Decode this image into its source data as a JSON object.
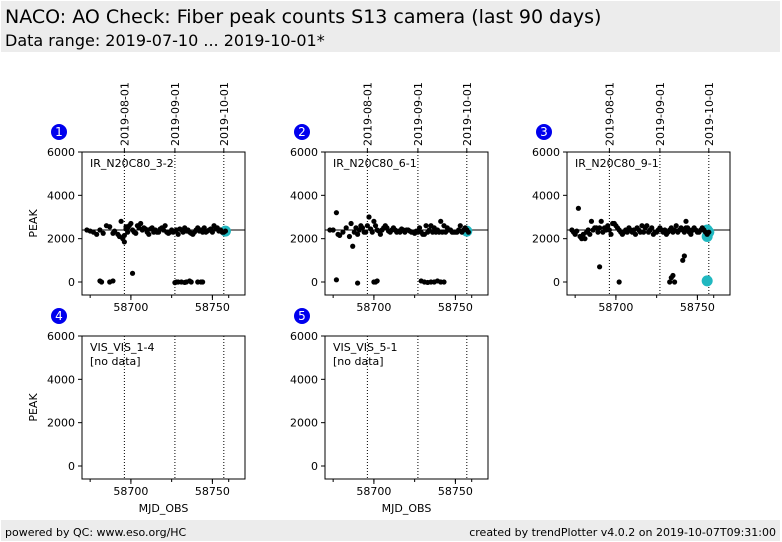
{
  "header": {
    "title": "NACO: AO Check: Fiber peak counts S13 camera (last 90 days)",
    "subtitle": "Data range: 2019-07-10 ... 2019-10-01*"
  },
  "footer": {
    "left": "powered by QC: www.eso.org/HC",
    "right": "created by trendPlotter v4.0.2 on 2019-10-07T09:31:00"
  },
  "colors": {
    "badge": "#0000ee",
    "highlight": "#20b8c0",
    "points": "#000000",
    "header_bg": "#ececec"
  },
  "chart_data": {
    "type": "scatter",
    "xlabel": "MJD_OBS",
    "ylabel": "PEAK",
    "xlim": [
      58670,
      58770
    ],
    "ylim": [
      -600,
      6000
    ],
    "yticks": [
      0,
      2000,
      4000,
      6000
    ],
    "xticks": [
      58700,
      58750
    ],
    "date_markers": [
      {
        "label": "2019-08-01",
        "mjd": 58696
      },
      {
        "label": "2019-09-01",
        "mjd": 58727
      },
      {
        "label": "2019-10-01",
        "mjd": 58757
      }
    ],
    "panels": [
      {
        "id": "1",
        "label": "IR_N20C80_3-2",
        "reference": 2400,
        "x": [
          58673,
          58675,
          58677,
          58679,
          58681,
          58683,
          58685,
          58687,
          58689,
          58690,
          58692,
          58693,
          58694,
          58695,
          58696,
          58696,
          58697,
          58697,
          58698,
          58698,
          58699,
          58700,
          58701,
          58702,
          58703,
          58704,
          58705,
          58706,
          58707,
          58708,
          58709,
          58710,
          58711,
          58712,
          58713,
          58714,
          58715,
          58716,
          58717,
          58718,
          58719,
          58720,
          58721,
          58722,
          58723,
          58724,
          58725,
          58726,
          58727,
          58728,
          58729,
          58730,
          58731,
          58732,
          58733,
          58734,
          58735,
          58736,
          58737,
          58738,
          58739,
          58740,
          58741,
          58742,
          58743,
          58744,
          58745,
          58746,
          58747,
          58748,
          58749,
          58750,
          58751,
          58752,
          58753,
          58754,
          58755,
          58756,
          58757,
          58758,
          58681,
          58682,
          58687,
          58689,
          58701,
          58727,
          58728,
          58729,
          58731,
          58733,
          58734,
          58736,
          58737,
          58741,
          58743,
          58744
        ],
        "y": [
          2400,
          2350,
          2300,
          2200,
          2400,
          2250,
          2600,
          2550,
          2250,
          2350,
          2200,
          2100,
          2800,
          2000,
          1850,
          2150,
          2450,
          2550,
          2500,
          2300,
          2600,
          2700,
          2400,
          2300,
          2250,
          2600,
          2500,
          2700,
          2400,
          2500,
          2450,
          2300,
          2200,
          2450,
          2500,
          2300,
          2400,
          2300,
          2300,
          2450,
          2500,
          2400,
          2600,
          2300,
          2250,
          2300,
          2400,
          2300,
          2350,
          2400,
          2200,
          2450,
          2400,
          2300,
          2500,
          2350,
          2400,
          2300,
          2250,
          2200,
          2300,
          2400,
          2500,
          2350,
          2400,
          2300,
          2500,
          2300,
          2350,
          2400,
          2450,
          2300,
          2600,
          2450,
          2500,
          2350,
          2400,
          2300,
          2300,
          2350,
          50,
          0,
          0,
          50,
          400,
          -30,
          0,
          0,
          0,
          -20,
          0,
          50,
          0,
          0,
          0,
          0
        ],
        "hx": [
          58758
        ],
        "hy": [
          2350
        ]
      },
      {
        "id": "2",
        "label": "IR_N20C80_6-1",
        "reference": 2400,
        "x": [
          58673,
          58675,
          58677,
          58678,
          58679,
          58681,
          58683,
          58685,
          58686,
          58687,
          58688,
          58689,
          58690,
          58691,
          58692,
          58693,
          58694,
          58695,
          58696,
          58697,
          58698,
          58699,
          58700,
          58701,
          58702,
          58703,
          58704,
          58705,
          58706,
          58707,
          58708,
          58709,
          58710,
          58711,
          58712,
          58713,
          58714,
          58715,
          58716,
          58717,
          58718,
          58719,
          58720,
          58721,
          58722,
          58723,
          58724,
          58725,
          58726,
          58727,
          58728,
          58729,
          58730,
          58731,
          58732,
          58733,
          58734,
          58735,
          58736,
          58737,
          58738,
          58739,
          58740,
          58741,
          58742,
          58743,
          58744,
          58745,
          58746,
          58747,
          58748,
          58749,
          58750,
          58751,
          58752,
          58753,
          58754,
          58755,
          58756,
          58757,
          58758,
          58677,
          58690,
          58700,
          58701,
          58702,
          58729,
          58731,
          58733,
          58735,
          58737,
          58739,
          58741,
          58743
        ],
        "y": [
          2400,
          2400,
          3200,
          2200,
          2150,
          2300,
          2500,
          2100,
          2700,
          1650,
          2300,
          2500,
          2200,
          2400,
          2600,
          2500,
          2300,
          2300,
          2600,
          3000,
          2450,
          2300,
          2800,
          2600,
          2400,
          2350,
          2200,
          2400,
          2500,
          2600,
          2500,
          2350,
          2300,
          2400,
          2500,
          2400,
          2300,
          2350,
          2300,
          2450,
          2400,
          2300,
          2400,
          2400,
          2350,
          2300,
          2300,
          2250,
          2350,
          2300,
          2500,
          2300,
          2200,
          2200,
          2600,
          2300,
          2400,
          2600,
          2300,
          2500,
          2300,
          2400,
          2300,
          2800,
          2300,
          2600,
          2300,
          2500,
          2400,
          2400,
          2300,
          2300,
          2300,
          2300,
          2400,
          2600,
          2300,
          2400,
          2500,
          2400,
          2300,
          100,
          -50,
          0,
          0,
          50,
          50,
          0,
          -20,
          0,
          0,
          50,
          0,
          0
        ],
        "hx": [
          58757
        ],
        "hy": [
          2350
        ]
      },
      {
        "id": "3",
        "label": "IR_N20C80_9-1",
        "reference": 2400,
        "x": [
          58673,
          58674,
          58675,
          58676,
          58677,
          58678,
          58679,
          58680,
          58681,
          58682,
          58683,
          58684,
          58685,
          58686,
          58687,
          58688,
          58689,
          58690,
          58691,
          58692,
          58693,
          58694,
          58695,
          58696,
          58697,
          58698,
          58699,
          58700,
          58701,
          58702,
          58703,
          58704,
          58705,
          58706,
          58707,
          58708,
          58709,
          58710,
          58711,
          58712,
          58713,
          58714,
          58715,
          58716,
          58717,
          58718,
          58719,
          58720,
          58721,
          58722,
          58723,
          58724,
          58725,
          58726,
          58727,
          58728,
          58729,
          58730,
          58731,
          58732,
          58733,
          58734,
          58735,
          58736,
          58737,
          58738,
          58739,
          58740,
          58741,
          58742,
          58743,
          58744,
          58745,
          58746,
          58747,
          58748,
          58749,
          58750,
          58751,
          58752,
          58753,
          58754,
          58755,
          58756,
          58757,
          58690,
          58702,
          58733,
          58734,
          58735,
          58736,
          58741,
          58742,
          58743,
          58744,
          58745,
          58746,
          58747
        ],
        "y": [
          2400,
          2300,
          2200,
          2350,
          3400,
          2100,
          2000,
          2200,
          2000,
          2300,
          2400,
          2200,
          2800,
          2400,
          2500,
          2500,
          2300,
          2500,
          2800,
          2300,
          2500,
          2400,
          2600,
          2400,
          2200,
          2700,
          2700,
          2600,
          2500,
          2400,
          2300,
          2200,
          2300,
          2400,
          2300,
          2500,
          2400,
          2300,
          2400,
          2200,
          2500,
          2400,
          2300,
          2600,
          2300,
          2500,
          2600,
          2300,
          2400,
          2500,
          2200,
          2300,
          2300,
          2400,
          2500,
          2400,
          2300,
          2400,
          2200,
          2300,
          2400,
          2500,
          2300,
          2400,
          2600,
          2300,
          2400,
          2500,
          2400,
          2300,
          2500,
          2400,
          2300,
          2200,
          2400,
          2500,
          2400,
          2300,
          2300,
          2400,
          2500,
          2400,
          2300,
          2200,
          2300,
          700,
          0,
          0,
          200,
          300,
          0,
          1000,
          1200,
          2800,
          2500,
          2400,
          2300,
          2400
        ],
        "hx": [
          58756,
          58756,
          58757,
          58756
        ],
        "hy": [
          2400,
          2100,
          2300,
          50
        ]
      },
      {
        "id": "4",
        "label": "VIS_VIS_1-4",
        "note": "[no data]",
        "reference": null,
        "x": [],
        "y": [],
        "hx": [],
        "hy": []
      },
      {
        "id": "5",
        "label": "VIS_VIS_5-1",
        "note": "[no data]",
        "reference": null,
        "x": [],
        "y": [],
        "hx": [],
        "hy": []
      }
    ]
  }
}
